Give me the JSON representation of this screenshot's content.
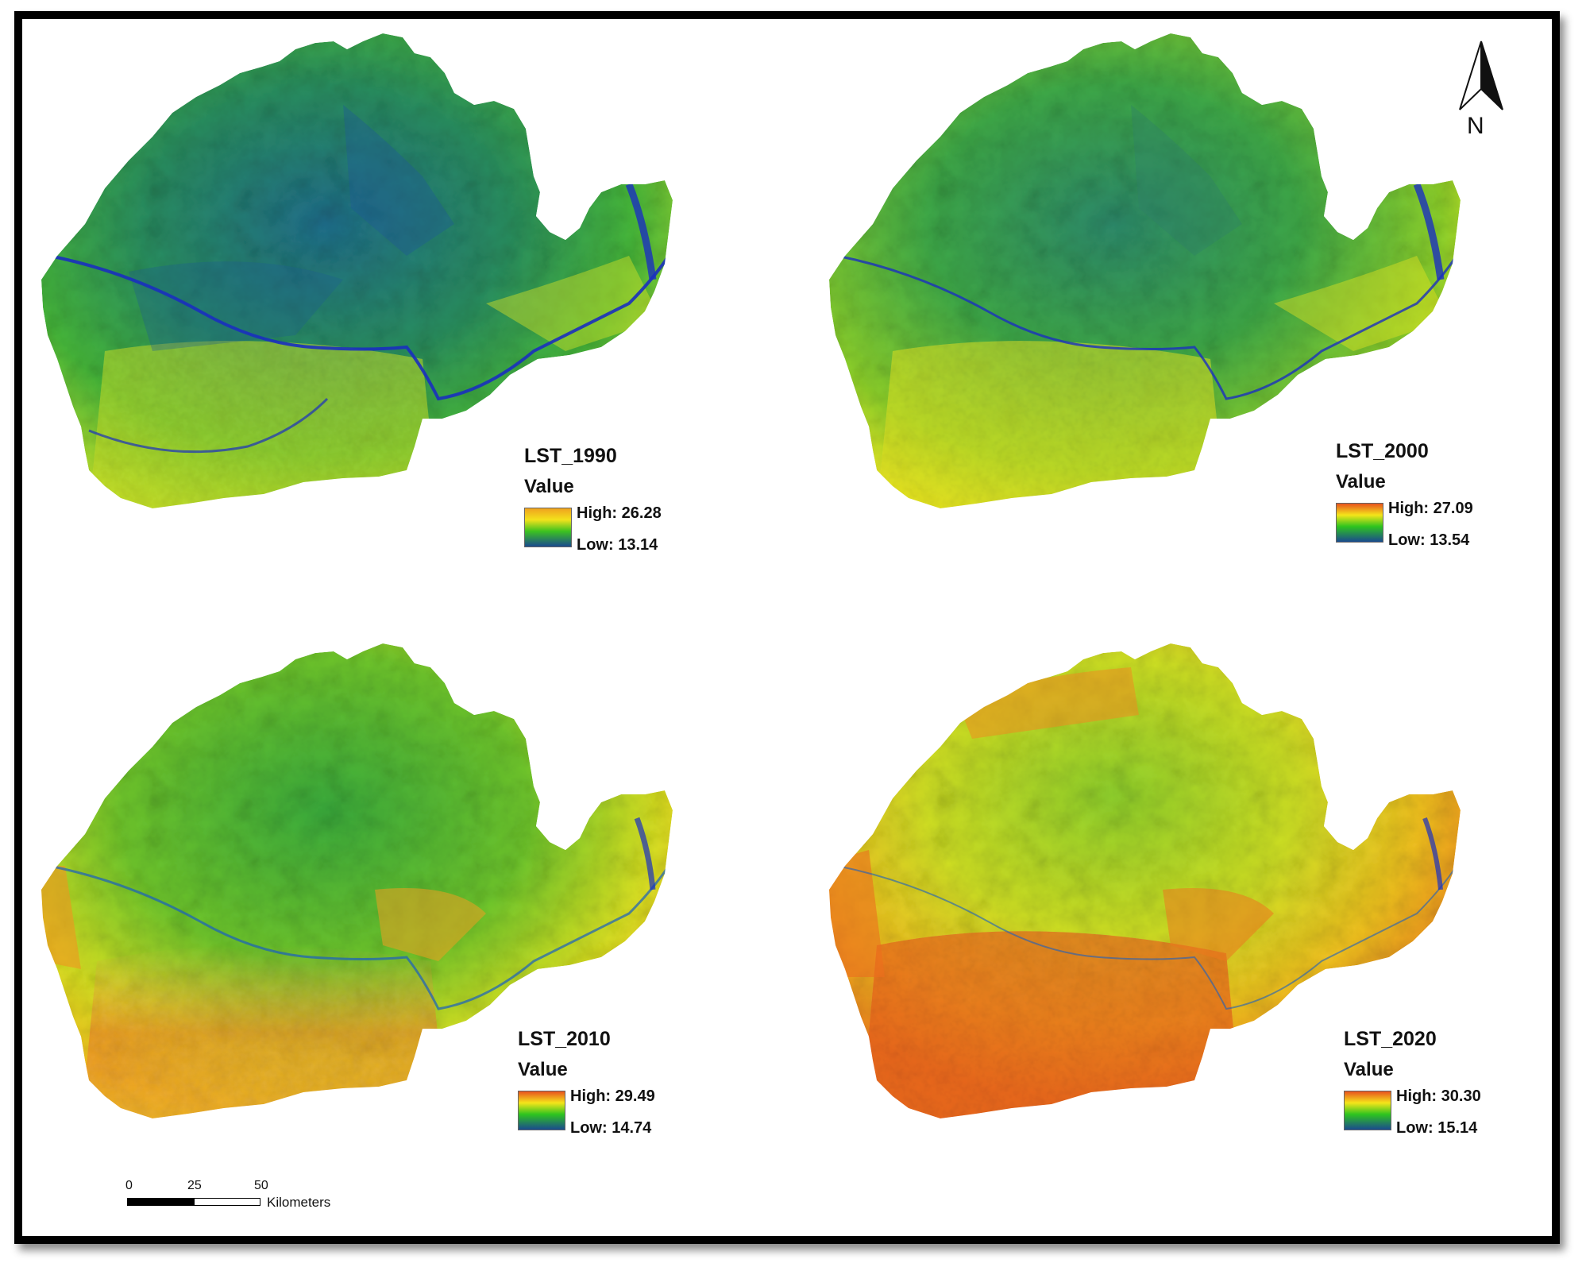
{
  "panels": [
    {
      "title": "LST_1990",
      "value_label": "Value",
      "high": "High: 26.28",
      "low": "Low: 13.14",
      "tint": "cool"
    },
    {
      "title": "LST_2000",
      "value_label": "Value",
      "high": "High: 27.09",
      "low": "Low: 13.54",
      "tint": "cool2"
    },
    {
      "title": "LST_2010",
      "value_label": "Value",
      "high": "High: 29.49",
      "low": "Low: 14.74",
      "tint": "warm"
    },
    {
      "title": "LST_2020",
      "value_label": "Value",
      "high": "High: 30.30",
      "low": "Low: 15.14",
      "tint": "hot"
    }
  ],
  "north_arrow": {
    "label": "N"
  },
  "scale_bar": {
    "ticks": [
      "0",
      "25",
      "50"
    ],
    "unit": "Kilometers"
  },
  "colors": {
    "ramp_high": "#e8531e",
    "ramp_mid_high": "#f5e51a",
    "ramp_mid": "#2ec41e",
    "ramp_low": "#1a4a8f",
    "river": "#1a2fbf",
    "frame": "#000000"
  }
}
